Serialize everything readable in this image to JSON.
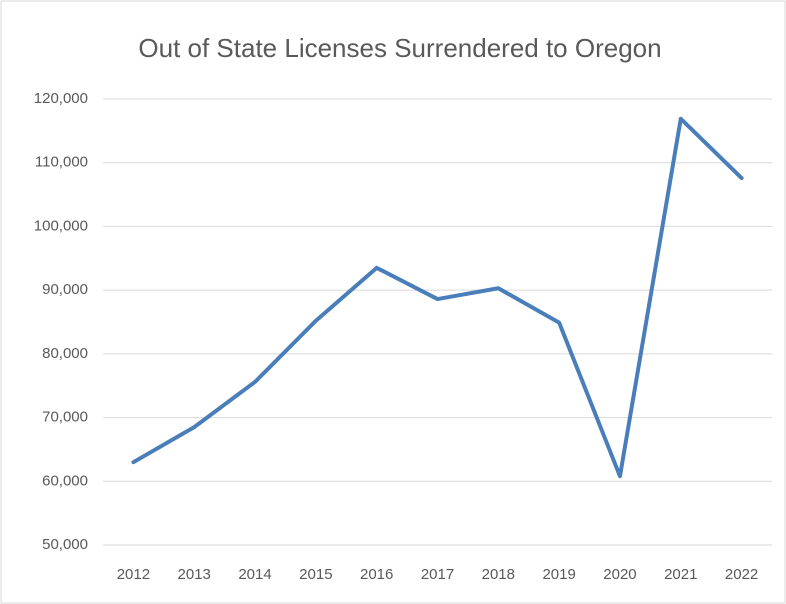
{
  "chart_data": {
    "type": "line",
    "title": "Out of State Licenses Surrendered to Oregon",
    "categories": [
      "2012",
      "2013",
      "2014",
      "2015",
      "2016",
      "2017",
      "2018",
      "2019",
      "2020",
      "2021",
      "2022"
    ],
    "series": [
      {
        "name": "Licenses",
        "color": "#4a7ebb",
        "values": [
          63000,
          68500,
          75600,
          85200,
          93500,
          88600,
          90300,
          84900,
          60800,
          116900,
          107600
        ]
      }
    ],
    "ylim": [
      50000,
      120000
    ],
    "yticks": [
      {
        "value": 50000,
        "label": "50,000"
      },
      {
        "value": 60000,
        "label": "60,000"
      },
      {
        "value": 70000,
        "label": "70,000"
      },
      {
        "value": 80000,
        "label": "80,000"
      },
      {
        "value": 90000,
        "label": "90,000"
      },
      {
        "value": 100000,
        "label": "100,000"
      },
      {
        "value": 110000,
        "label": "110,000"
      },
      {
        "value": 120000,
        "label": "120,000"
      }
    ],
    "grid": true
  }
}
